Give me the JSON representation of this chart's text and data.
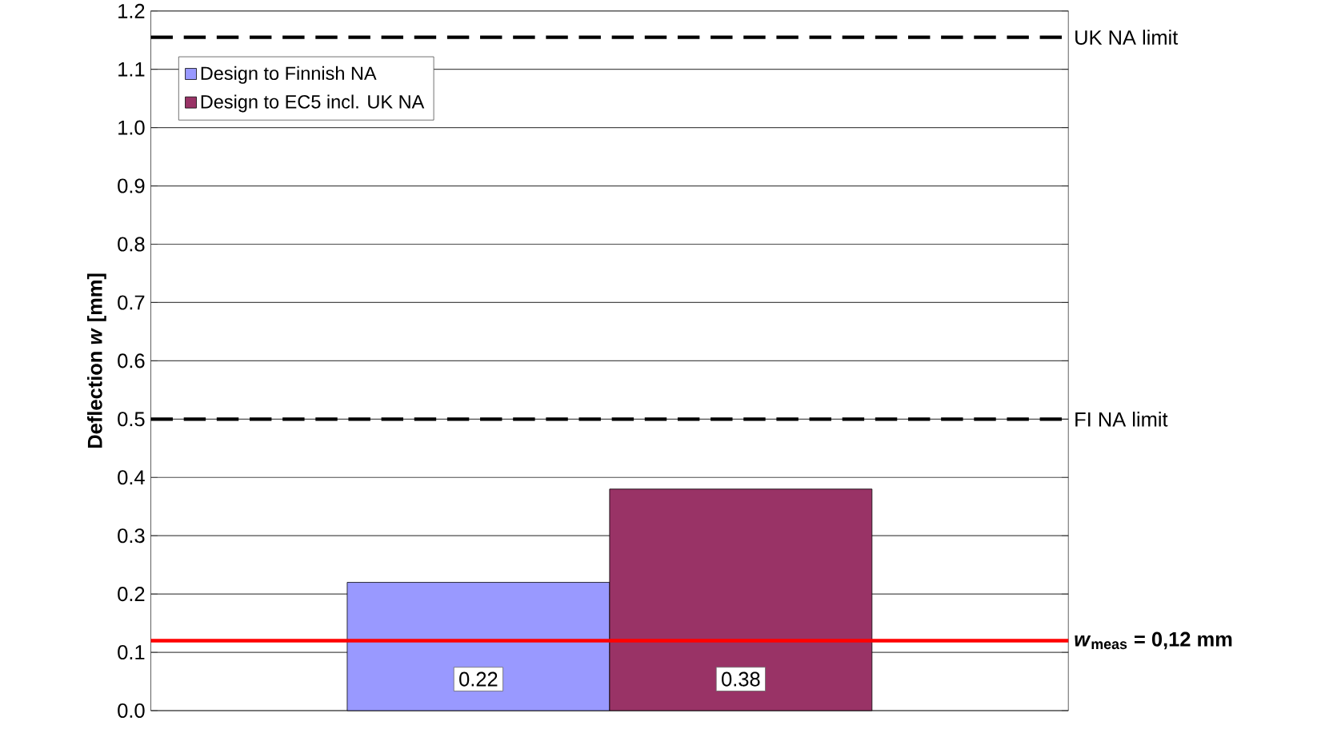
{
  "chart_data": {
    "type": "bar",
    "ylabel": "Deflection *w* [mm]",
    "categories": [
      null
    ],
    "series": [
      {
        "name": "Design to Finnish NA",
        "color": "#9999ff",
        "values": [
          0.22
        ]
      },
      {
        "name": "Design to EC5 incl. UK NA",
        "color": "#993366",
        "values": [
          0.38
        ]
      }
    ],
    "data_labels": true,
    "ylim": [
      0,
      1.2
    ],
    "yticks": [
      {
        "value": 0,
        "label": "0.0"
      },
      0.1,
      0.2,
      0.3,
      0.4,
      0.5,
      0.6,
      0.7,
      0.8,
      0.9,
      {
        "value": 1,
        "label": "1.0"
      },
      1.1,
      1.2
    ],
    "grid": "y",
    "legend": "top left",
    "ref_lines": [
      {
        "axis": "y",
        "value": 1.155,
        "label": "UK NA limit",
        "color": "#000000",
        "line_style": "dashed"
      },
      {
        "axis": "y",
        "value": 0.5,
        "label": "FI NA limit",
        "color": "#000000",
        "line_style": "dashed"
      },
      {
        "axis": "y",
        "value": 0.12,
        "label": "*w*$_{meas}$ = 0,12 mm",
        "color": "#ff0000",
        "line_style": "solid"
      }
    ]
  }
}
